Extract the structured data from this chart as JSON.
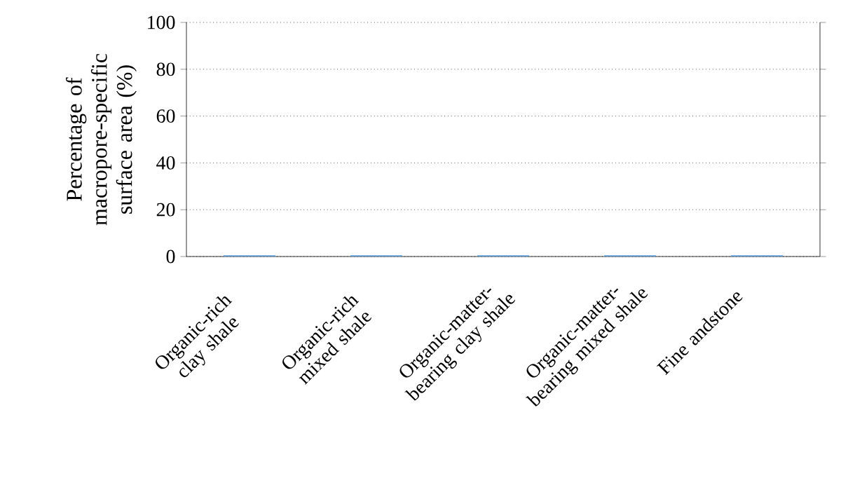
{
  "chart_data": {
    "type": "bar",
    "ylabel": "Percentage of macropore-specific surface area (%)",
    "categories": [
      "Organic-rich clay shale",
      "Organic-rich mixed shale",
      "Organic-matter-bearing clay shale",
      "Organic-matter-bearing mixed shale",
      "Fine andstone"
    ],
    "values": [
      0.5,
      0.5,
      0.5,
      0.5,
      0.5
    ],
    "color": "#5b9bd5",
    "ylim": [
      0,
      100
    ],
    "yticks": [
      0,
      20,
      40,
      60,
      80,
      100
    ],
    "grid": "y"
  }
}
